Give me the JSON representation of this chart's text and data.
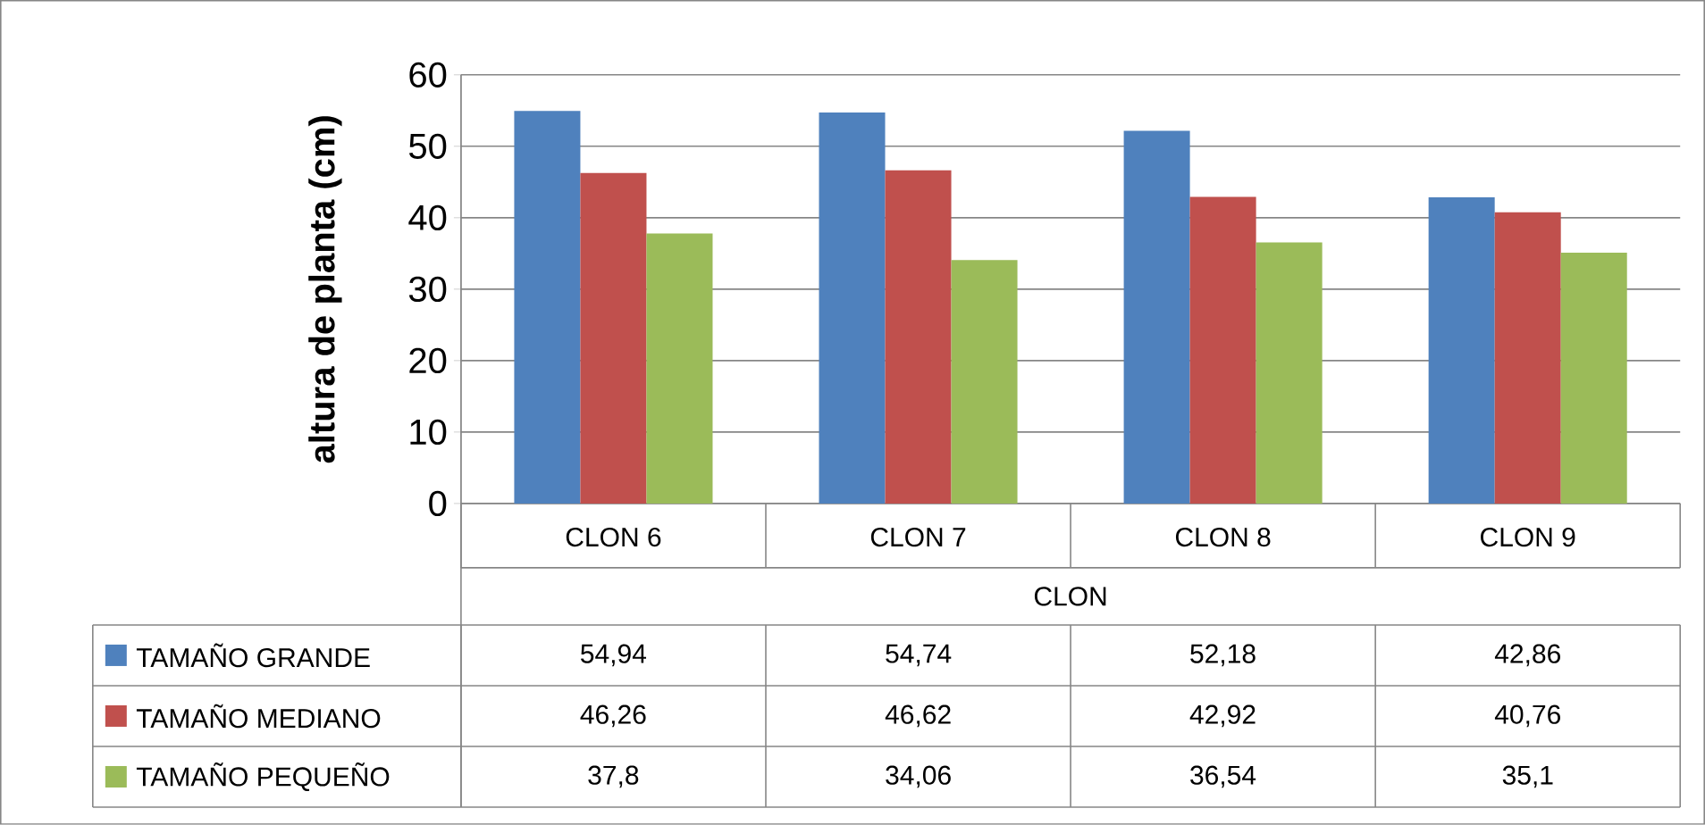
{
  "chart_data": {
    "type": "bar",
    "ylabel": "altura de planta (cm)",
    "xlabel": "CLON",
    "categories": [
      "CLON 6",
      "CLON 7",
      "CLON 8",
      "CLON 9"
    ],
    "ylim": [
      0,
      60
    ],
    "yticks": [
      0,
      10,
      20,
      30,
      40,
      50,
      60
    ],
    "grid": "y",
    "legend": "bottom",
    "series": [
      {
        "name": "TAMAÑO GRANDE",
        "color": "#4f81bd",
        "values": [
          54.94,
          54.74,
          52.18,
          42.86
        ],
        "value_labels": [
          "54,94",
          "54,74",
          "52,18",
          "42,86"
        ]
      },
      {
        "name": "TAMAÑO MEDIANO",
        "color": "#c0504d",
        "values": [
          46.26,
          46.62,
          42.92,
          40.76
        ],
        "value_labels": [
          "46,26",
          "46,62",
          "42,92",
          "40,76"
        ]
      },
      {
        "name": "TAMAÑO PEQUEÑO",
        "color": "#9bbb59",
        "values": [
          37.8,
          34.06,
          36.54,
          35.1
        ],
        "value_labels": [
          "37,8",
          "34,06",
          "36,54",
          "35,1"
        ]
      }
    ]
  }
}
